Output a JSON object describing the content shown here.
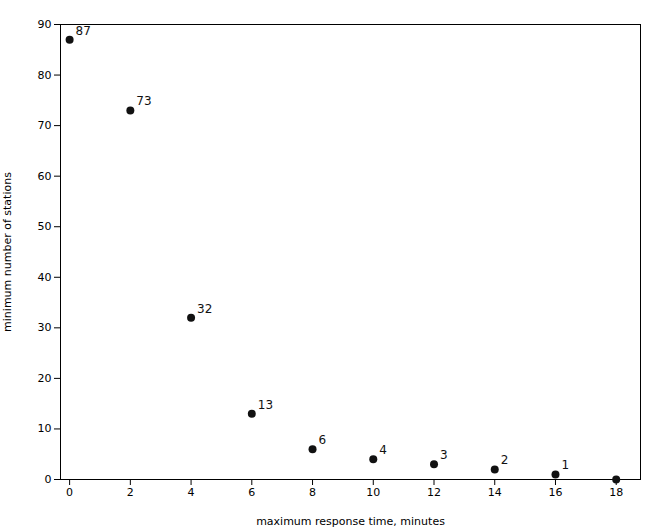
{
  "chart_data": {
    "type": "scatter",
    "x": [
      0,
      2,
      4,
      6,
      8,
      10,
      12,
      14,
      16,
      18
    ],
    "values": [
      87,
      73,
      32,
      13,
      6,
      4,
      3,
      2,
      1,
      0
    ],
    "value_labels": [
      "87",
      "73",
      "32",
      "13",
      "6",
      "4",
      "3",
      "2",
      "1",
      null
    ],
    "data_labels": true,
    "color": "#111111",
    "xlabel": "maximum response time, minutes",
    "ylabel": "minimum number of stations",
    "xlim": [
      -0.3,
      18.8
    ],
    "ylim": [
      0,
      90
    ],
    "xticks": [
      0,
      2,
      4,
      6,
      8,
      10,
      12,
      14,
      16,
      18
    ],
    "yticks": [
      0,
      10,
      20,
      30,
      40,
      50,
      60,
      70,
      80,
      90
    ],
    "grid": false
  }
}
